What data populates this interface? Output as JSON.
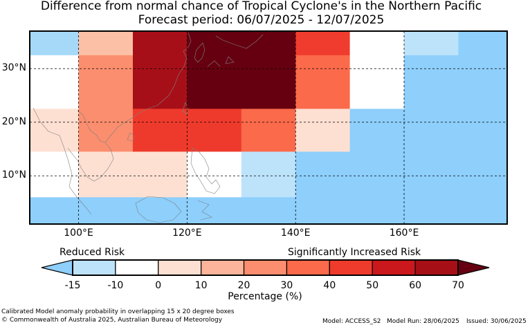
{
  "title": "Difference from normal chance of Tropical Cyclone's in the Northern Pacific",
  "subtitle": "Forecast period: 06/07/2025 - 12/07/2025",
  "map": {
    "lon_range": [
      91,
      179
    ],
    "lat_range": [
      1,
      37
    ],
    "lon_ticks": [
      {
        "value": 100,
        "label": "100°E"
      },
      {
        "value": 120,
        "label": "120°E"
      },
      {
        "value": 140,
        "label": "140°E"
      },
      {
        "value": 160,
        "label": "160°E"
      }
    ],
    "lat_ticks": [
      {
        "value": 10,
        "label": "10°N"
      },
      {
        "value": 20,
        "label": "20°N"
      },
      {
        "value": 30,
        "label": "30°N"
      }
    ],
    "cells": [
      {
        "lon": [
          91,
          100
        ],
        "lat": [
          32.5,
          37
        ],
        "color": "#a6d8f7"
      },
      {
        "lon": [
          100,
          110
        ],
        "lat": [
          32.5,
          37
        ],
        "color": "#fcc0a6"
      },
      {
        "lon": [
          110,
          120
        ],
        "lat": [
          32.5,
          37
        ],
        "color": "#a70f18"
      },
      {
        "lon": [
          120,
          140
        ],
        "lat": [
          32.5,
          37
        ],
        "color": "#660011"
      },
      {
        "lon": [
          140,
          150
        ],
        "lat": [
          32.5,
          37
        ],
        "color": "#f03c2e"
      },
      {
        "lon": [
          150,
          160
        ],
        "lat": [
          32.5,
          37
        ],
        "color": "#ffffff"
      },
      {
        "lon": [
          160,
          170
        ],
        "lat": [
          32.5,
          37
        ],
        "color": "#bde3fb"
      },
      {
        "lon": [
          170,
          179
        ],
        "lat": [
          32.5,
          37
        ],
        "color": "#8ecffc"
      },
      {
        "lon": [
          91,
          100
        ],
        "lat": [
          22.5,
          32.5
        ],
        "color": "#ffffff"
      },
      {
        "lon": [
          100,
          110
        ],
        "lat": [
          22.5,
          32.5
        ],
        "color": "#fb8e6e"
      },
      {
        "lon": [
          110,
          120
        ],
        "lat": [
          22.5,
          32.5
        ],
        "color": "#a70f18"
      },
      {
        "lon": [
          120,
          140
        ],
        "lat": [
          22.5,
          32.5
        ],
        "color": "#660011"
      },
      {
        "lon": [
          140,
          150
        ],
        "lat": [
          22.5,
          32.5
        ],
        "color": "#fb6a4a"
      },
      {
        "lon": [
          150,
          160
        ],
        "lat": [
          22.5,
          32.5
        ],
        "color": "#ffffff"
      },
      {
        "lon": [
          160,
          179
        ],
        "lat": [
          22.5,
          32.5
        ],
        "color": "#8ecffc"
      },
      {
        "lon": [
          91,
          100
        ],
        "lat": [
          14.5,
          22.5
        ],
        "color": "#fee0d2"
      },
      {
        "lon": [
          100,
          110
        ],
        "lat": [
          14.5,
          22.5
        ],
        "color": "#fb8e6e"
      },
      {
        "lon": [
          110,
          130
        ],
        "lat": [
          14.5,
          22.5
        ],
        "color": "#ee3a2c"
      },
      {
        "lon": [
          130,
          140
        ],
        "lat": [
          14.5,
          22.5
        ],
        "color": "#fb6a4a"
      },
      {
        "lon": [
          140,
          150
        ],
        "lat": [
          14.5,
          22.5
        ],
        "color": "#fee0d2"
      },
      {
        "lon": [
          150,
          179
        ],
        "lat": [
          14.5,
          22.5
        ],
        "color": "#8ecffc"
      },
      {
        "lon": [
          91,
          100
        ],
        "lat": [
          6,
          14.5
        ],
        "color": "#ffffff"
      },
      {
        "lon": [
          100,
          120
        ],
        "lat": [
          6,
          14.5
        ],
        "color": "#fee0d2"
      },
      {
        "lon": [
          120,
          130
        ],
        "lat": [
          6,
          14.5
        ],
        "color": "#ffffff"
      },
      {
        "lon": [
          130,
          140
        ],
        "lat": [
          6,
          14.5
        ],
        "color": "#bde3fb"
      },
      {
        "lon": [
          140,
          179
        ],
        "lat": [
          6,
          14.5
        ],
        "color": "#8ecffc"
      },
      {
        "lon": [
          91,
          179
        ],
        "lat": [
          1,
          6
        ],
        "color": "#8ecffc"
      }
    ]
  },
  "legend": {
    "left_caption": "Reduced Risk",
    "right_caption": "Significantly Increased Risk",
    "xlabel": "Percentage (%)",
    "boundaries": [
      -15,
      -10,
      0,
      10,
      20,
      30,
      40,
      50,
      60,
      70
    ],
    "tick_labels": [
      "-15",
      "-10",
      "0",
      "10",
      "20",
      "30",
      "40",
      "50",
      "60",
      "70"
    ],
    "low_extend_color": "#8ecffc",
    "high_extend_color": "#660011",
    "bin_colors": [
      "#bde3fb",
      "#ffffff",
      "#fee0d2",
      "#fcb49a",
      "#fb8e6e",
      "#fb6a4a",
      "#ef3b2c",
      "#cb181d",
      "#a50f15"
    ]
  },
  "footer": {
    "line1": "Calibrated Model anomaly probability in overlapping 15 x 20 degree boxes",
    "line2": "© Commonwealth of Australia 2025, Australian Bureau of Meteorology",
    "model": "Model: ACCESS_S2",
    "model_run": "Model Run: 28/06/2025",
    "issued": "Issued: 30/06/2025"
  }
}
